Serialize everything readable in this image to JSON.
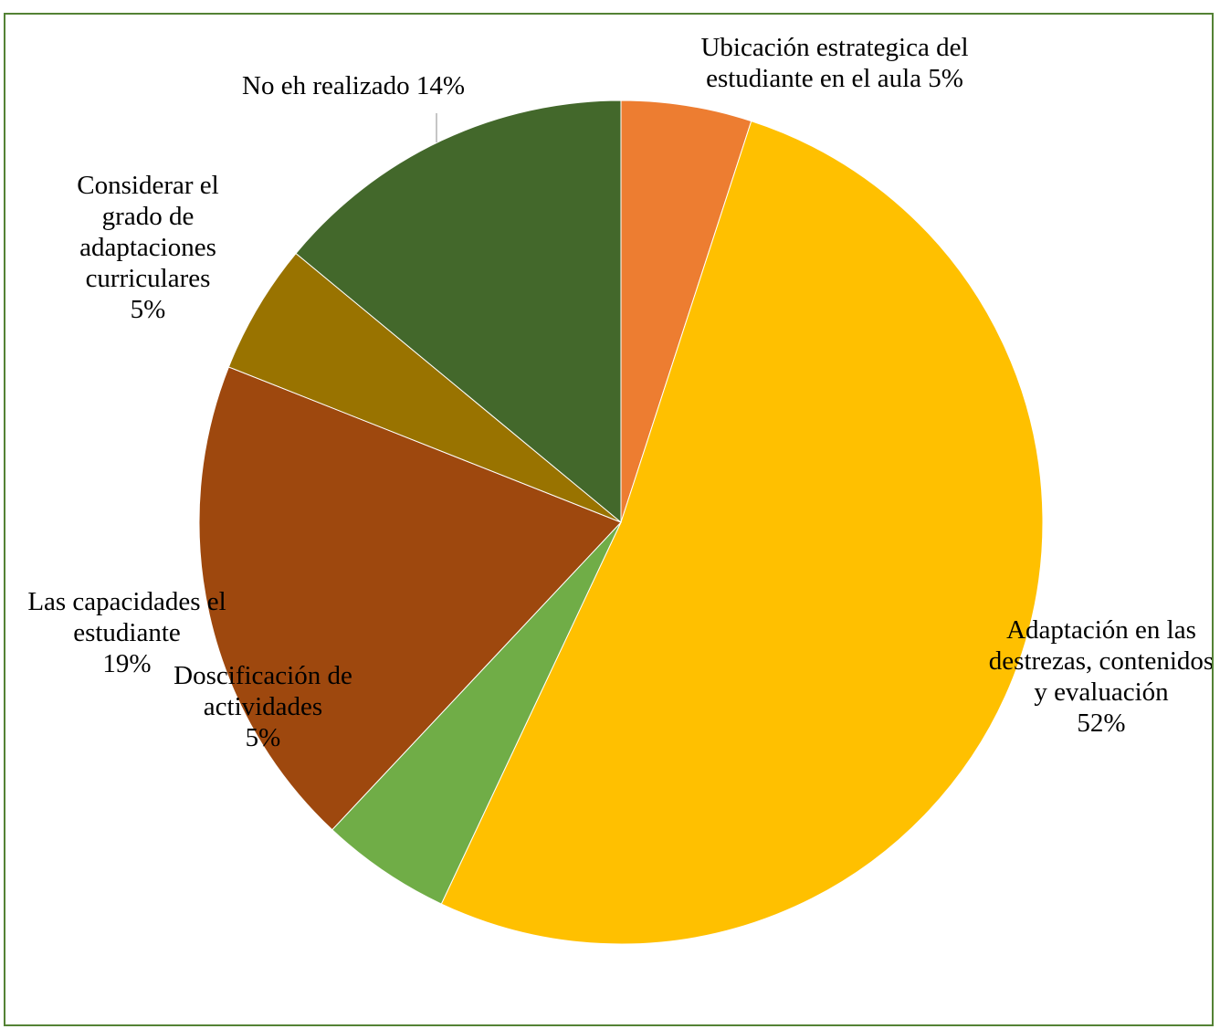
{
  "chart_data": {
    "type": "pie",
    "title": "",
    "slices": [
      {
        "label_lines": [
          "Ubicación estrategica del",
          "estudiante en el aula 5%"
        ],
        "value": 5,
        "color": "#ED7D31"
      },
      {
        "label_lines": [
          "Adaptación en las",
          "destrezas, contenidos",
          "y evaluación",
          "52%"
        ],
        "value": 52,
        "color": "#FFC000"
      },
      {
        "label_lines": [
          "Doscificación de",
          "actividades",
          "5%"
        ],
        "value": 5,
        "color": "#70AD47"
      },
      {
        "label_lines": [
          "Las capacidades el",
          "estudiante",
          "19%"
        ],
        "value": 19,
        "color": "#9E480E"
      },
      {
        "label_lines": [
          "Considerar el",
          "grado de",
          "adaptaciones",
          "curriculares",
          "5%"
        ],
        "value": 5,
        "color": "#997300"
      },
      {
        "label_lines": [
          "No eh realizado 14%"
        ],
        "value": 14,
        "color": "#43682B"
      }
    ],
    "legend": "none",
    "start_angle": "12 o'clock",
    "direction": "clockwise"
  }
}
